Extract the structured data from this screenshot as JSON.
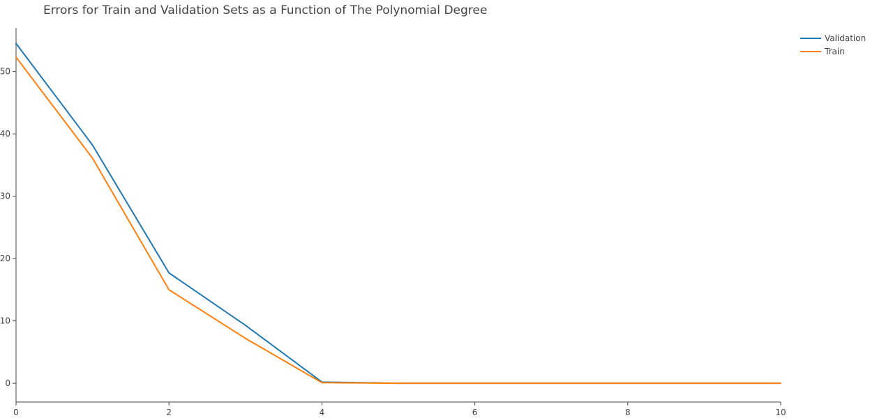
{
  "chart_data": {
    "type": "line",
    "title": "Errors for Train and Validation Sets as a Function of The Polynomial Degree",
    "xlabel": "",
    "ylabel": "",
    "x": [
      0,
      1,
      2,
      3,
      4,
      5,
      6,
      7,
      8,
      9,
      10
    ],
    "xlim": [
      0,
      10
    ],
    "ylim": [
      -3,
      57
    ],
    "xticks": [
      0,
      2,
      4,
      6,
      8,
      10
    ],
    "yticks": [
      0,
      10,
      20,
      30,
      40,
      50
    ],
    "grid": false,
    "legend_position": "top-right",
    "series": [
      {
        "name": "Validation",
        "color": "#1f77b4",
        "values": [
          54.5,
          38.2,
          17.7,
          9.3,
          0.2,
          0.0,
          0.0,
          0.0,
          0.0,
          0.0,
          0.0
        ]
      },
      {
        "name": "Train",
        "color": "#ff7f0e",
        "values": [
          52.3,
          36.1,
          15.0,
          7.2,
          0.1,
          0.0,
          0.0,
          0.0,
          0.0,
          0.0,
          0.0
        ]
      }
    ]
  }
}
